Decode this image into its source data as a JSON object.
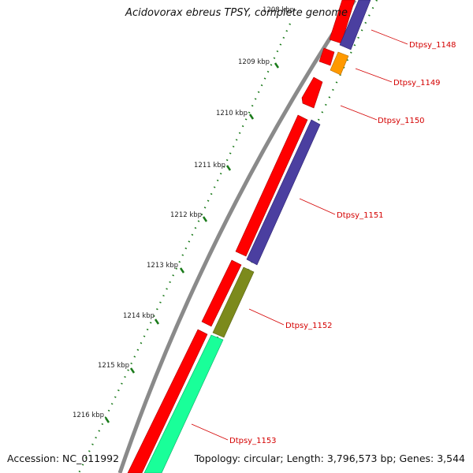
{
  "title": "Acidovorax ebreus TPSY, complete genome",
  "footer": {
    "accession": "Accession: NC_011992",
    "summary": "Topology: circular; Length: 3,796,573 bp; Genes: 3,544"
  },
  "ruler_labels": [
    "1208 kbp",
    "1209 kbp",
    "1210 kbp",
    "1211 kbp",
    "1212 kbp",
    "1213 kbp",
    "1214 kbp",
    "1215 kbp",
    "1216 kbp"
  ],
  "genes": [
    {
      "name": "Dtpsy_1148",
      "color": "#ff0000"
    },
    {
      "name": "Dtpsy_1149",
      "color": "#ff9900"
    },
    {
      "name": "Dtpsy_1150",
      "color": "#ff0000"
    },
    {
      "name": "Dtpsy_1151",
      "color": "#ff0000"
    },
    {
      "name": "Dtpsy_1152",
      "color": "#7c8a1c"
    },
    {
      "name": "Dtpsy_1153",
      "color": "#19ff99"
    }
  ],
  "colors": {
    "cds": "#ff0000",
    "partner_track": "#4b3fa0",
    "backbone": "#8a8a8a",
    "ruler_ticks": "#1a7a1a",
    "label": "#d40000"
  }
}
